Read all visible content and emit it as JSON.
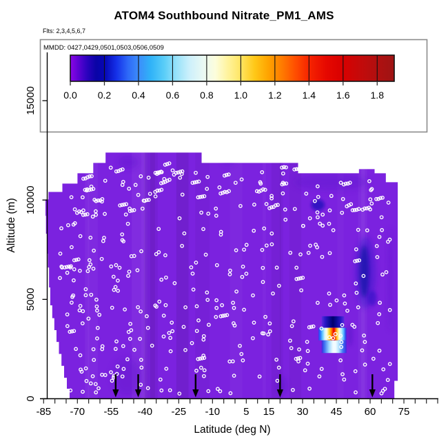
{
  "page": {
    "background": "#ffffff"
  },
  "header": {
    "title": "ATOM4 Southbound Nitrate_PM1_AMS",
    "flights_note": "Flts: 2,3,4,5,6,7"
  },
  "legend": {
    "mmdd": "MMDD: 0427,0429,0501,0503,0506,0509"
  },
  "chart_data": {
    "type": "heatmap",
    "title": "ATOM4 Southbound Nitrate_PM1_AMS",
    "xlabel": "Latitude (deg N)",
    "ylabel": "Altitude (m)",
    "xlim": [
      -85,
      90
    ],
    "ylim": [
      0,
      17500
    ],
    "x_labeled_ticks": [
      -85,
      -70,
      -55,
      -40,
      -25,
      -10,
      5,
      15,
      30,
      45,
      60,
      75
    ],
    "x_minor_tick_step": 5,
    "y_ticks": [
      0,
      5000,
      10000,
      15000
    ],
    "grid": false,
    "legend_position": "top-inside",
    "colorbar": {
      "range": [
        0.0,
        1.9
      ],
      "tick_values": [
        0.0,
        0.2,
        0.4,
        0.6,
        0.8,
        1.0,
        1.2,
        1.4,
        1.6,
        1.8
      ],
      "tick_labels": [
        "0.0",
        "0.2",
        "0.4",
        "0.6",
        "0.8",
        "1.0",
        "1.2",
        "1.4",
        "1.6",
        "1.8"
      ],
      "divider_values": [
        0.2,
        0.4,
        0.6,
        0.8,
        1.0,
        1.2,
        1.4,
        1.6,
        1.8
      ],
      "stops": [
        [
          0.0,
          "#8A06E6"
        ],
        [
          0.05,
          "#5A02D2"
        ],
        [
          0.1,
          "#2A02BE"
        ],
        [
          0.15,
          "#0A04A6"
        ],
        [
          0.2,
          "#0606B4"
        ],
        [
          0.27,
          "#1430E8"
        ],
        [
          0.34,
          "#2E6AF8"
        ],
        [
          0.4,
          "#3C8CFA"
        ],
        [
          0.47,
          "#2FB2F8"
        ],
        [
          0.55,
          "#59CDF8"
        ],
        [
          0.62,
          "#96E2FA"
        ],
        [
          0.7,
          "#CDF0FB"
        ],
        [
          0.78,
          "#EAF9F3"
        ],
        [
          0.85,
          "#FCFDDC"
        ],
        [
          0.92,
          "#FFF4A0"
        ],
        [
          1.0,
          "#FFE562"
        ],
        [
          1.08,
          "#FFC818"
        ],
        [
          1.16,
          "#FFA400"
        ],
        [
          1.24,
          "#FF7C00"
        ],
        [
          1.32,
          "#FF4E00"
        ],
        [
          1.4,
          "#F62400"
        ],
        [
          1.5,
          "#E60800"
        ],
        [
          1.6,
          "#D80000"
        ],
        [
          1.7,
          "#C40A0A"
        ],
        [
          1.8,
          "#B01010"
        ],
        [
          1.9,
          "#9E1414"
        ]
      ]
    },
    "field": {
      "background_color": "#7B22DF",
      "background_value_approx": 0.06,
      "boundary_lat_alt": [
        [
          -73.5,
          0
        ],
        [
          -73.5,
          500
        ],
        [
          -74.7,
          500
        ],
        [
          -74.7,
          1050
        ],
        [
          -75.9,
          1050
        ],
        [
          -75.9,
          1650
        ],
        [
          -77.1,
          1650
        ],
        [
          -77.1,
          2250
        ],
        [
          -78.2,
          2250
        ],
        [
          -78.2,
          2850
        ],
        [
          -79.3,
          2850
        ],
        [
          -79.3,
          3450
        ],
        [
          -80.3,
          3450
        ],
        [
          -80.3,
          4050
        ],
        [
          -81.2,
          4050
        ],
        [
          -81.2,
          4700
        ],
        [
          -82.1,
          4700
        ],
        [
          -82.1,
          5600
        ],
        [
          -82.6,
          5600
        ],
        [
          -82.6,
          6600
        ],
        [
          -83.1,
          6600
        ],
        [
          -83.1,
          7300
        ],
        [
          -83.6,
          7300
        ],
        [
          -83.6,
          8300
        ],
        [
          -84.0,
          8300
        ],
        [
          -84.0,
          9200
        ],
        [
          -84.2,
          9200
        ],
        [
          -84.2,
          10030
        ],
        [
          -82.9,
          10030
        ],
        [
          -82.9,
          10410
        ],
        [
          -76.7,
          10410
        ],
        [
          -76.7,
          10830
        ],
        [
          -70,
          10830
        ],
        [
          -70,
          11350
        ],
        [
          -63,
          11350
        ],
        [
          -63,
          11870
        ],
        [
          -57.5,
          11870
        ],
        [
          -57.5,
          12390
        ],
        [
          -14.8,
          12390
        ],
        [
          -14.8,
          11870
        ],
        [
          28,
          11870
        ],
        [
          28,
          11350
        ],
        [
          55,
          11350
        ],
        [
          55,
          11560
        ],
        [
          62,
          11560
        ],
        [
          62,
          11350
        ],
        [
          67,
          11350
        ],
        [
          67,
          10900
        ],
        [
          72.3,
          10900
        ],
        [
          72.3,
          900
        ],
        [
          70.8,
          900
        ],
        [
          70.8,
          0
        ]
      ],
      "top_profile": [
        [
          -84.2,
          10030
        ],
        [
          -82.9,
          10410
        ],
        [
          -76.7,
          10830
        ],
        [
          -70,
          11350
        ],
        [
          -63,
          11870
        ],
        [
          -57.5,
          12390
        ],
        [
          -14.8,
          11870
        ],
        [
          28,
          11350
        ],
        [
          55,
          11560
        ],
        [
          62,
          11350
        ],
        [
          67,
          10900
        ]
      ],
      "bottom_profile": [
        [
          -84.2,
          9200
        ],
        [
          -84.0,
          8300
        ],
        [
          -83.6,
          7300
        ],
        [
          -83.1,
          6600
        ],
        [
          -82.6,
          5600
        ],
        [
          -82.1,
          4700
        ],
        [
          -81.2,
          4050
        ],
        [
          -80.3,
          3450
        ],
        [
          -79.3,
          2850
        ],
        [
          -78.2,
          2250
        ],
        [
          -77.1,
          1650
        ],
        [
          -75.9,
          1050
        ],
        [
          -74.7,
          500
        ],
        [
          -73.5,
          0
        ]
      ]
    },
    "features": {
      "smudges": [
        {
          "lat": 57.9,
          "alt": 6350,
          "w_deg": 9.2,
          "h_m": 3600,
          "color": "#2a12c6",
          "opacity": 0.4,
          "blur": 4
        },
        {
          "lat": 57.4,
          "alt": 6400,
          "w_deg": 4.2,
          "h_m": 2600,
          "color": "#000a9e",
          "opacity": 0.6,
          "blur": 3
        },
        {
          "lat": 36.8,
          "alt": 9750,
          "w_deg": 6.0,
          "h_m": 560,
          "color": "#0a08b4",
          "opacity": 0.65,
          "blur": 2
        },
        {
          "lat": 42.5,
          "alt": 10900,
          "w_deg": 33,
          "h_m": 800,
          "color": "#5c17cc",
          "opacity": 0.4,
          "blur": 5
        },
        {
          "lat": -48,
          "alt": 1100,
          "w_deg": 13,
          "h_m": 1900,
          "color": "#5c14c8",
          "opacity": 0.35,
          "blur": 5
        },
        {
          "lat": -47.5,
          "alt": 11900,
          "w_deg": 9,
          "h_m": 700,
          "color": "#6318d0",
          "opacity": 0.45,
          "blur": 4
        },
        {
          "lat": 61,
          "alt": 5050,
          "w_deg": 4,
          "h_m": 750,
          "color": "#2a10c4",
          "opacity": 0.5,
          "blur": 2
        },
        {
          "lat": 69,
          "alt": 6000,
          "w_deg": 2.6,
          "h_m": 5200,
          "color": "#6318d0",
          "opacity": 0.4,
          "blur": 4
        },
        {
          "lat": 51,
          "alt": 3200,
          "w_deg": 2.2,
          "h_m": 1100,
          "color": "#4a10c0",
          "opacity": 0.4,
          "blur": 3
        },
        {
          "lat": 20.5,
          "alt": 650,
          "w_deg": 5,
          "h_m": 900,
          "color": "#4a10c0",
          "opacity": 0.3,
          "blur": 4
        },
        {
          "lat": -3,
          "alt": 12000,
          "w_deg": 6,
          "h_m": 600,
          "color": "#6a1ed6",
          "opacity": 0.4,
          "blur": 4
        }
      ],
      "plume": {
        "red_core": {
          "lat": 44.6,
          "alt_m": 3250,
          "value_approx": 1.9
        },
        "bands": [
          {
            "name": "upper-navy",
            "lat0": 38.5,
            "lat1": 48.5,
            "alt0": 3580,
            "alt1": 4150,
            "stops": [
              [
                0,
                "#5c2bdc"
              ],
              [
                0.15,
                "#2a18c8"
              ],
              [
                0.35,
                "#0a0a96"
              ],
              [
                0.5,
                "#00006e"
              ],
              [
                0.65,
                "#0a0a96"
              ],
              [
                0.85,
                "#2a18c8"
              ],
              [
                1,
                "#5c2bdc"
              ]
            ]
          },
          {
            "name": "mid-rainbow",
            "lat0": 37.0,
            "lat1": 49.5,
            "alt0": 2940,
            "alt1": 3570,
            "stops": [
              [
                0,
                "#4030E8"
              ],
              [
                0.07,
                "#2277FF"
              ],
              [
                0.15,
                "#66ccff"
              ],
              [
                0.23,
                "#d8f6ff"
              ],
              [
                0.3,
                "#fffde0"
              ],
              [
                0.37,
                "#ffe14a"
              ],
              [
                0.43,
                "#ffb300"
              ],
              [
                0.47,
                "#ff7a00"
              ],
              [
                0.51,
                "#ff3000"
              ],
              [
                0.55,
                "#dd0000"
              ],
              [
                0.59,
                "#ff3800"
              ],
              [
                0.63,
                "#ff9000"
              ],
              [
                0.68,
                "#ffd84a"
              ],
              [
                0.74,
                "#fffbd8"
              ],
              [
                0.82,
                "#b8ecff"
              ],
              [
                0.9,
                "#55b8ff"
              ],
              [
                0.96,
                "#2f55ee"
              ],
              [
                1,
                "#3c2ae0"
              ]
            ]
          },
          {
            "name": "lower-blue-white",
            "lat0": 38.5,
            "lat1": 49.5,
            "alt0": 2300,
            "alt1": 2930,
            "stops": [
              [
                0,
                "#3c2ae0"
              ],
              [
                0.12,
                "#3f79f2"
              ],
              [
                0.3,
                "#9fd8ff"
              ],
              [
                0.45,
                "#eefaff"
              ],
              [
                0.55,
                "#f4fcff"
              ],
              [
                0.68,
                "#b9e6ff"
              ],
              [
                0.85,
                "#3f79f2"
              ],
              [
                1,
                "#3c2ae0"
              ]
            ]
          }
        ]
      }
    },
    "profile_arrows_lat": [
      -53,
      -43,
      -17.5,
      20,
      61
    ],
    "sample_markers": {
      "style": "open-circle",
      "color": "#ffffff",
      "seed": 11,
      "approx_count": 520
    }
  }
}
